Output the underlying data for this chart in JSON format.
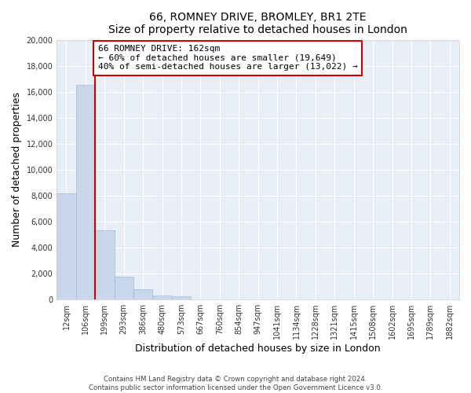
{
  "title": "66, ROMNEY DRIVE, BROMLEY, BR1 2TE",
  "subtitle": "Size of property relative to detached houses in London",
  "xlabel": "Distribution of detached houses by size in London",
  "ylabel": "Number of detached properties",
  "bar_labels": [
    "12sqm",
    "106sqm",
    "199sqm",
    "293sqm",
    "386sqm",
    "480sqm",
    "573sqm",
    "667sqm",
    "760sqm",
    "854sqm",
    "947sqm",
    "1041sqm",
    "1134sqm",
    "1228sqm",
    "1321sqm",
    "1415sqm",
    "1508sqm",
    "1602sqm",
    "1695sqm",
    "1789sqm",
    "1882sqm"
  ],
  "bar_heights": [
    8200,
    16500,
    5300,
    1750,
    800,
    280,
    250,
    0,
    0,
    0,
    0,
    0,
    0,
    0,
    0,
    0,
    0,
    0,
    0,
    0,
    0
  ],
  "bar_color": "#c8d8ea",
  "bar_edge_color": "#a0bcd4",
  "property_line_color": "#cc0000",
  "annotation_title": "66 ROMNEY DRIVE: 162sqm",
  "annotation_line1": "← 60% of detached houses are smaller (19,649)",
  "annotation_line2": "40% of semi-detached houses are larger (13,022) →",
  "annotation_box_facecolor": "white",
  "annotation_box_edgecolor": "#cc0000",
  "ylim": [
    0,
    20000
  ],
  "yticks": [
    0,
    2000,
    4000,
    6000,
    8000,
    10000,
    12000,
    14000,
    16000,
    18000,
    20000
  ],
  "footer1": "Contains HM Land Registry data © Crown copyright and database right 2024.",
  "footer2": "Contains public sector information licensed under the Open Government Licence v3.0.",
  "bg_color": "#ffffff",
  "plot_bg_color": "#e8eef5",
  "grid_color": "#ffffff",
  "spine_color": "#cccccc"
}
